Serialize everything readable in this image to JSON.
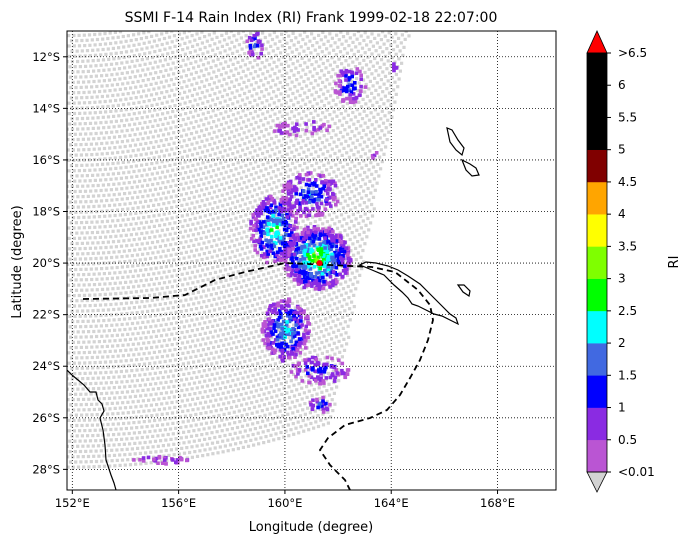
{
  "chart_data": {
    "type": "heatmap",
    "title": "SSMI F-14 Rain Index (RI) Frank 1999-02-18 22:07:00",
    "xlabel": "Longitude (degree)",
    "ylabel": "Latitude (degree)",
    "x_ticks": [
      {
        "value": 152,
        "label": "152°E"
      },
      {
        "value": 156,
        "label": "156°E"
      },
      {
        "value": 160,
        "label": "160°E"
      },
      {
        "value": 164,
        "label": "164°E"
      },
      {
        "value": 168,
        "label": "168°E"
      }
    ],
    "y_ticks": [
      {
        "value": -12,
        "label": "12°S"
      },
      {
        "value": -14,
        "label": "14°S"
      },
      {
        "value": -16,
        "label": "16°S"
      },
      {
        "value": -18,
        "label": "18°S"
      },
      {
        "value": -20,
        "label": "20°S"
      },
      {
        "value": -22,
        "label": "22°S"
      },
      {
        "value": -24,
        "label": "24°S"
      },
      {
        "value": -26,
        "label": "26°S"
      },
      {
        "value": -28,
        "label": "28°S"
      }
    ],
    "xlim": [
      151.8,
      170.2
    ],
    "ylim": [
      -28.8,
      -11.0
    ],
    "grid": "dotted",
    "colorbar": {
      "label": "RI",
      "tick_labels": [
        "<0.01",
        "0.5",
        "1",
        "1.5",
        "2",
        "2.5",
        "3",
        "3.5",
        "4",
        "4.5",
        "5",
        "5.5",
        "6",
        ">6.5"
      ],
      "colors": [
        "#ba55d3",
        "#8a2be2",
        "#0000ff",
        "#4169e1",
        "#00ffff",
        "#00ff00",
        "#7fff00",
        "#ffff00",
        "#ffa500",
        "#800000",
        "#000000",
        "#000000",
        "#000000"
      ],
      "over_color": "#ff0000",
      "under_color": "#d3d3d3"
    },
    "swath_color": "#d3d3d3",
    "storm_center": {
      "lon": 161.3,
      "lat": -20.0
    }
  }
}
